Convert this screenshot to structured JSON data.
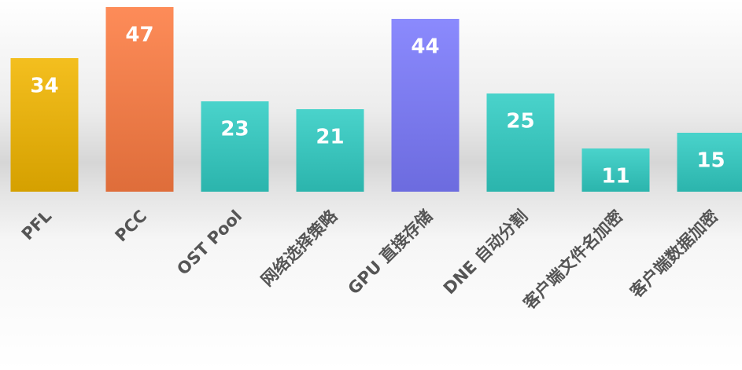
{
  "chart_data": {
    "type": "bar",
    "categories": [
      "PFL",
      "PCC",
      "OST Pool",
      "网络选择策略",
      "GPU 直接存储",
      "DNE 自动分割",
      "客户端文件名加密",
      "客户端数据加密"
    ],
    "values": [
      34,
      47,
      23,
      21,
      44,
      25,
      11,
      15
    ],
    "colors": [
      "#f2b600",
      "#fd7c42",
      "#31cdc4",
      "#31cdc4",
      "#7b7afd",
      "#31cdc4",
      "#31cdc4",
      "#31cdc4"
    ],
    "ylim": [
      0,
      48
    ]
  }
}
